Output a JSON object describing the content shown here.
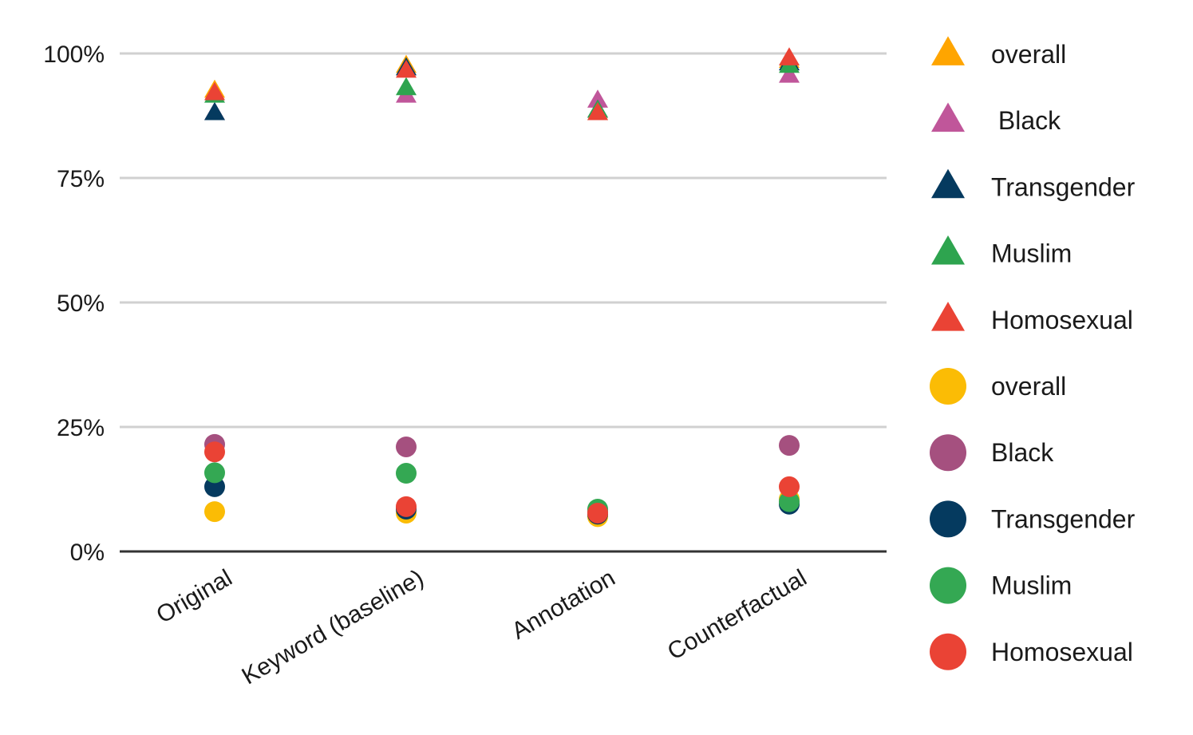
{
  "chart_data": {
    "type": "scatter",
    "title": "",
    "xlabel": "",
    "ylabel": "",
    "categories": [
      "Original",
      "Keyword (baseline)",
      "Annotation",
      "Counterfactual"
    ],
    "y_ticks": [
      "0%",
      "25%",
      "50%",
      "75%",
      "100%"
    ],
    "ylim": [
      0,
      100
    ],
    "series": [
      {
        "name": "overall",
        "marker": "triangle",
        "color": "#FFA500",
        "values": [
          92.5,
          97.5,
          88,
          98.5
        ]
      },
      {
        "name": " Black",
        "marker": "triangle",
        "color": "#C0569A",
        "values": [
          88,
          91.5,
          90.5,
          95.5
        ]
      },
      {
        "name": "Transgender",
        "marker": "triangle",
        "color": "#053A5F",
        "values": [
          88,
          97,
          88.5,
          98
        ]
      },
      {
        "name": "Muslim",
        "marker": "triangle",
        "color": "#2EA44F",
        "values": [
          91.5,
          93,
          88.5,
          97.5
        ]
      },
      {
        "name": "Homosexual",
        "marker": "triangle",
        "color": "#EA4335",
        "values": [
          92,
          96.5,
          88,
          99
        ]
      },
      {
        "name": "overall",
        "marker": "circle",
        "color": "#FBBC05",
        "values": [
          8,
          7.7,
          7,
          10.5
        ]
      },
      {
        "name": "Black",
        "marker": "circle",
        "color": "#A5507F",
        "values": [
          21.5,
          21,
          8,
          21.3
        ]
      },
      {
        "name": "Transgender",
        "marker": "circle",
        "color": "#053A5F",
        "values": [
          13,
          8.5,
          7.5,
          9.5
        ]
      },
      {
        "name": "Muslim",
        "marker": "circle",
        "color": "#34A853",
        "values": [
          15.8,
          15.7,
          8.5,
          10
        ]
      },
      {
        "name": "Homosexual",
        "marker": "circle",
        "color": "#EA4335",
        "values": [
          20,
          9,
          7.7,
          13
        ]
      }
    ]
  }
}
